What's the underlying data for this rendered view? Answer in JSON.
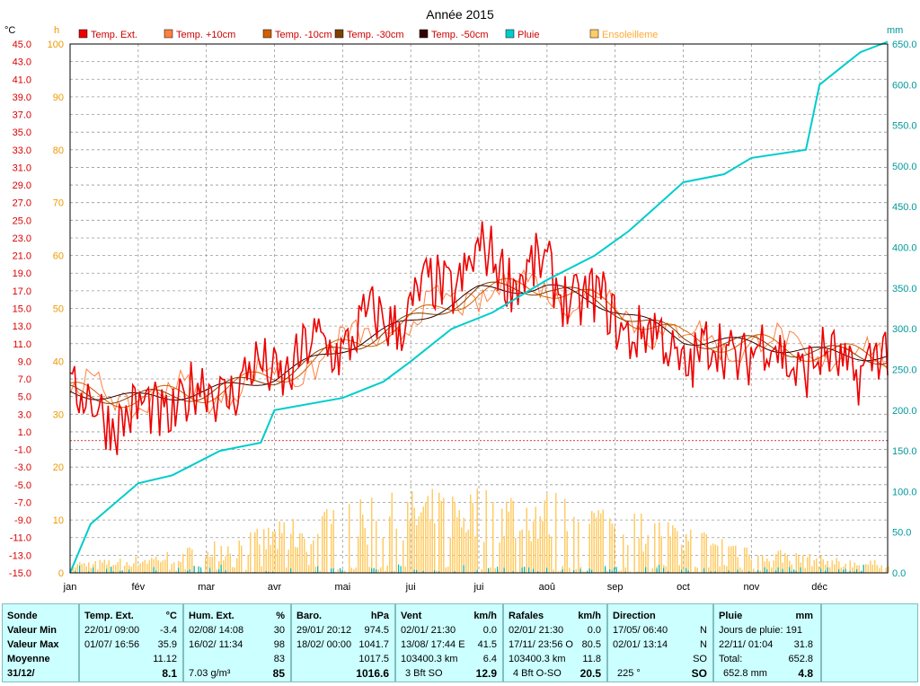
{
  "chart_data": {
    "type": "line",
    "title": "Année 2015",
    "left_unit": "°C",
    "sun_unit": "h",
    "right_unit": "mm",
    "months": [
      "jan",
      "fév",
      "mar",
      "avr",
      "mai",
      "jui",
      "jui",
      "aoû",
      "sep",
      "oct",
      "nov",
      "déc"
    ],
    "temp_ticks": [
      "45.0",
      "43.0",
      "41.0",
      "39.0",
      "37.0",
      "35.0",
      "33.0",
      "31.0",
      "29.0",
      "27.0",
      "25.0",
      "23.0",
      "21.0",
      "19.0",
      "17.0",
      "15.0",
      "13.0",
      "11.0",
      "9.0",
      "7.0",
      "5.0",
      "3.0",
      "1.0",
      "-1.0",
      "-3.0",
      "-5.0",
      "-7.0",
      "-9.0",
      "-11.0",
      "-13.0",
      "-15.0"
    ],
    "sun_ticks": [
      "100",
      "90",
      "80",
      "70",
      "60",
      "50",
      "40",
      "30",
      "20",
      "10",
      "0"
    ],
    "rain_ticks": [
      "650.0",
      "600.0",
      "550.0",
      "500.0",
      "450.0",
      "400.0",
      "350.0",
      "300.0",
      "250.0",
      "200.0",
      "150.0",
      "100.0",
      "50.0",
      "0.0"
    ],
    "ylim_temp": [
      -15,
      45
    ],
    "ylim_sun": [
      0,
      100
    ],
    "ylim_rain": [
      0,
      650
    ],
    "grid": true,
    "legend": [
      {
        "name": "Temp. Ext.",
        "color": "#ee0000"
      },
      {
        "name": "Temp. +10cm",
        "color": "#ff8040"
      },
      {
        "name": "Temp. -10cm",
        "color": "#d06000"
      },
      {
        "name": "Temp. -30cm",
        "color": "#804000"
      },
      {
        "name": "Temp. -50cm",
        "color": "#300000"
      },
      {
        "name": "Pluie",
        "color": "#00cccc"
      },
      {
        "name": "Ensoleilleme",
        "color": "#ffcc66"
      }
    ],
    "series_temp_ext_monthly": [
      4.5,
      2.5,
      5.5,
      8.0,
      11.5,
      15.0,
      20.5,
      18.5,
      14.0,
      9.5,
      10.5,
      8.5,
      9.0
    ],
    "series_soil_monthly": [
      5.5,
      4.8,
      5.5,
      7.2,
      10.5,
      13.5,
      17.0,
      17.5,
      15.0,
      11.5,
      11.0,
      10.0,
      9.5
    ],
    "series_rain_cumulative": [
      [
        0,
        0
      ],
      [
        0.3,
        60
      ],
      [
        1.0,
        110
      ],
      [
        1.5,
        120
      ],
      [
        2.2,
        150
      ],
      [
        2.8,
        160
      ],
      [
        3.0,
        200
      ],
      [
        4.0,
        215
      ],
      [
        4.6,
        235
      ],
      [
        5.0,
        260
      ],
      [
        5.6,
        300
      ],
      [
        6.2,
        320
      ],
      [
        7.0,
        360
      ],
      [
        7.7,
        390
      ],
      [
        8.2,
        420
      ],
      [
        8.6,
        450
      ],
      [
        9.0,
        480
      ],
      [
        9.6,
        490
      ],
      [
        10.0,
        510
      ],
      [
        10.8,
        520
      ],
      [
        11.0,
        600
      ],
      [
        11.3,
        620
      ],
      [
        11.6,
        640
      ],
      [
        12.0,
        652.8
      ]
    ]
  },
  "stats": {
    "sonde": {
      "h1": "Sonde",
      "r1": "Valeur Min",
      "r2": "Valeur Max",
      "r3": "Moyenne",
      "r4": "31/12/"
    },
    "temp": {
      "h": "Temp. Ext.",
      "u": "°C",
      "r1a": "22/01/  09:00",
      "r1b": "-3.4",
      "r2a": "01/07/  16:56",
      "r2b": "35.9",
      "r3b": "11.12",
      "r4b": "8.1"
    },
    "hum": {
      "h": "Hum. Ext.",
      "u": "%",
      "r1a": "02/08/  14:08",
      "r1b": "30",
      "r2a": "16/02/  11:34",
      "r2b": "98",
      "r3b": "83",
      "r4a": "7.03 g/m³",
      "r4b": "85"
    },
    "baro": {
      "h": "Baro.",
      "u": "hPa",
      "r1a": "29/01/  20:12",
      "r1b": "974.5",
      "r2a": "18/02/  00:00",
      "r2b": "1041.7",
      "r3b": "1017.5",
      "r4b": "1016.6"
    },
    "vent": {
      "h": "Vent",
      "u": "km/h",
      "r1a": "02/01/  21:30",
      "r1b": "0.0",
      "r2a": "13/08/  17:44  E",
      "r2b": "41.5",
      "r3a": "103400.3 km",
      "r3b": "6.4",
      "r4a": "3 Bft  SO",
      "r4b": "12.9"
    },
    "rafales": {
      "h": "Rafales",
      "u": "km/h",
      "r1a": "02/01/  21:30",
      "r1b": "0.0",
      "r2a": "17/11/  23:56  O",
      "r2b": "80.5",
      "r3a": "103400.3 km",
      "r3b": "11.8",
      "r4a": "4 Bft  O-SO",
      "r4b": "20.5"
    },
    "dir": {
      "h": "Direction",
      "r1a": "17/05/  06:40",
      "r1b": "N",
      "r2a": "02/01/  13:14",
      "r2b": "N",
      "r3b": "SO",
      "r4a": "225 °",
      "r4b": "SO"
    },
    "pluie": {
      "h": "Pluie",
      "u": "mm",
      "r1a": "Jours de pluie: 191",
      "r2a": "22/11/  01:04",
      "r2b": "31.8",
      "r3a": "Total:",
      "r3b": "652.8",
      "r4a": "652.8 mm",
      "r4b": "4.8"
    }
  }
}
